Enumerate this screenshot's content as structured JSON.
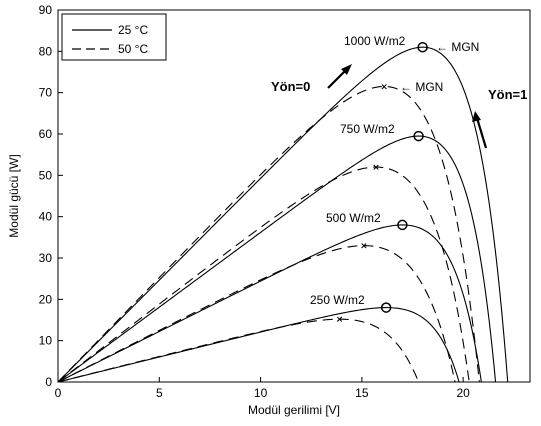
{
  "chart_data": {
    "type": "line",
    "xlabel": "Modül gerilimi [V]",
    "ylabel": "Modül gücü [W]",
    "xlim": [
      0,
      23.3
    ],
    "ylim": [
      0,
      90
    ],
    "xticks": [
      0,
      5,
      10,
      15,
      20
    ],
    "yticks": [
      0,
      10,
      20,
      30,
      40,
      50,
      60,
      70,
      80,
      90
    ],
    "grid": false,
    "legend_position": "top-left",
    "legend": [
      {
        "label": "25 °C",
        "style": "solid"
      },
      {
        "label": "50 °C",
        "style": "dashed"
      }
    ],
    "series": [
      {
        "irradiance": "1000 W/m2",
        "temperature": "25 °C",
        "style": "solid",
        "mpp": [
          18.0,
          81
        ],
        "voc": 22.2
      },
      {
        "irradiance": "1000 W/m2",
        "temperature": "50 °C",
        "style": "dashed",
        "mpp": [
          16.1,
          71.5
        ],
        "voc": 20.8
      },
      {
        "irradiance": "750 W/m2",
        "temperature": "25 °C",
        "style": "solid",
        "mpp": [
          17.8,
          59.5
        ],
        "voc": 21.6
      },
      {
        "irradiance": "750 W/m2",
        "temperature": "50 °C",
        "style": "dashed",
        "mpp": [
          15.7,
          52
        ],
        "voc": 20.3
      },
      {
        "irradiance": "500 W/m2",
        "temperature": "25 °C",
        "style": "solid",
        "mpp": [
          17.0,
          38
        ],
        "voc": 20.9
      },
      {
        "irradiance": "500 W/m2",
        "temperature": "50 °C",
        "style": "dashed",
        "mpp": [
          15.1,
          33
        ],
        "voc": 19.6
      },
      {
        "irradiance": "250 W/m2",
        "temperature": "25 °C",
        "style": "solid",
        "mpp": [
          16.2,
          18
        ],
        "voc": 19.8
      },
      {
        "irradiance": "250 W/m2",
        "temperature": "50 °C",
        "style": "dashed",
        "mpp": [
          13.9,
          15.2
        ],
        "voc": 17.8
      }
    ],
    "annotations": {
      "label_1000": "1000 W/m2",
      "label_750": "750 W/m2",
      "label_500": "500 W/m2",
      "label_250": "250 W/m2",
      "mgn_solid": "← MGN",
      "mgn_dashed": "← MGN",
      "direction_left": "Yön=0",
      "direction_right": "Yön=1"
    }
  }
}
